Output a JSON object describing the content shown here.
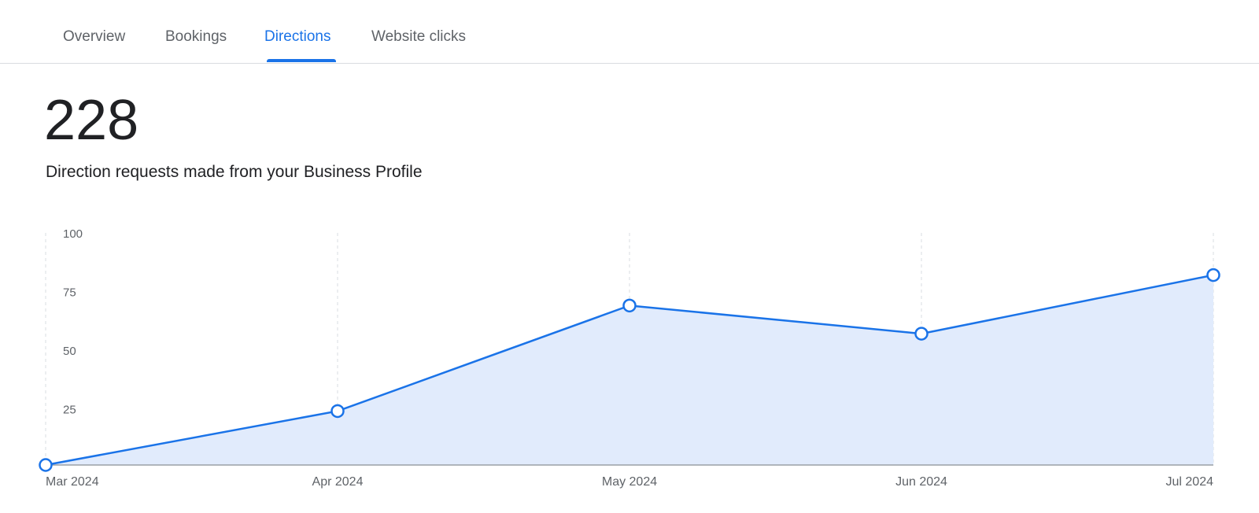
{
  "tabs": [
    {
      "label": "Overview"
    },
    {
      "label": "Bookings"
    },
    {
      "label": "Directions",
      "active": true
    },
    {
      "label": "Website clicks"
    }
  ],
  "summary": {
    "total": "228",
    "description": "Direction requests made from your Business Profile"
  },
  "colors": {
    "accent": "#1a73e8",
    "area_fill": "#e1ebfc"
  },
  "chart_data": {
    "type": "area",
    "categories": [
      "Mar 2024",
      "Apr 2024",
      "May 2024",
      "Jun 2024",
      "Jul 2024"
    ],
    "values": [
      0,
      23,
      68,
      56,
      81
    ],
    "yticks": [
      "100",
      "75",
      "50",
      "25"
    ],
    "ylim": [
      0,
      100
    ],
    "grid": "vertical dashed",
    "markers": "hollow circles"
  }
}
